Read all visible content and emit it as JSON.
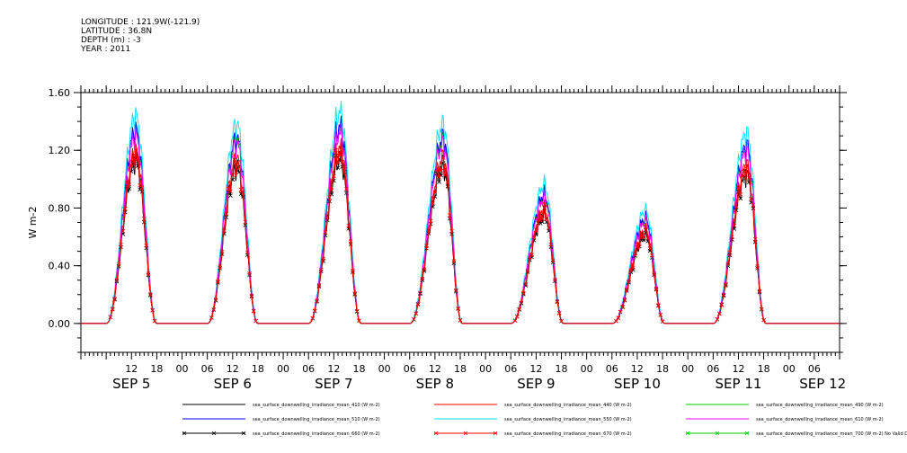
{
  "header": {
    "longitude_line": "LONGITUDE : 121.9W(-121.9)",
    "latitude_line": "LATITUDE : 36.8N",
    "depth_line": "DEPTH (m) : -3",
    "year_line": "YEAR : 2011"
  },
  "chart_data": {
    "type": "line",
    "ylabel": "W m-2",
    "ylim": [
      -0.2,
      1.6
    ],
    "yticks": [
      "1.60",
      "1.20",
      "0.80",
      "0.40",
      "0.00"
    ],
    "ytick_values": [
      1.6,
      1.2,
      0.8,
      0.4,
      0.0
    ],
    "xlim_hours": [
      0,
      180
    ],
    "xtick_labels": [
      {
        "h": 12,
        "label": "12"
      },
      {
        "h": 18,
        "label": "18"
      },
      {
        "h": 24,
        "label": "00"
      },
      {
        "h": 30,
        "label": "06"
      },
      {
        "h": 36,
        "label": "12"
      },
      {
        "h": 42,
        "label": "18"
      },
      {
        "h": 48,
        "label": "00"
      },
      {
        "h": 54,
        "label": "06"
      },
      {
        "h": 60,
        "label": "12"
      },
      {
        "h": 66,
        "label": "18"
      },
      {
        "h": 72,
        "label": "00"
      },
      {
        "h": 78,
        "label": "06"
      },
      {
        "h": 84,
        "label": "12"
      },
      {
        "h": 90,
        "label": "18"
      },
      {
        "h": 96,
        "label": "00"
      },
      {
        "h": 102,
        "label": "06"
      },
      {
        "h": 108,
        "label": "12"
      },
      {
        "h": 114,
        "label": "18"
      },
      {
        "h": 120,
        "label": "00"
      },
      {
        "h": 126,
        "label": "06"
      },
      {
        "h": 132,
        "label": "12"
      },
      {
        "h": 138,
        "label": "18"
      },
      {
        "h": 144,
        "label": "00"
      },
      {
        "h": 150,
        "label": "06"
      },
      {
        "h": 156,
        "label": "12"
      },
      {
        "h": 162,
        "label": "18"
      },
      {
        "h": 168,
        "label": "00"
      },
      {
        "h": 174,
        "label": "06"
      }
    ],
    "date_labels": [
      {
        "h": 12,
        "label": "SEP   5"
      },
      {
        "h": 36,
        "label": "SEP   6"
      },
      {
        "h": 60,
        "label": "SEP   7"
      },
      {
        "h": 84,
        "label": "SEP   8"
      },
      {
        "h": 108,
        "label": "SEP   9"
      },
      {
        "h": 132,
        "label": "SEP   10"
      },
      {
        "h": 156,
        "label": "SEP   11"
      },
      {
        "h": 176,
        "label": "SEP   12"
      }
    ],
    "days": [
      {
        "start": 6,
        "peak_h": 13,
        "end": 18,
        "peak": 1.2
      },
      {
        "start": 30,
        "peak_h": 37,
        "end": 42,
        "peak": 1.15
      },
      {
        "start": 54,
        "peak_h": 61.5,
        "end": 66.5,
        "peak": 1.22
      },
      {
        "start": 78,
        "peak_h": 86,
        "end": 90.5,
        "peak": 1.15
      },
      {
        "start": 102,
        "peak_h": 110,
        "end": 114.5,
        "peak": 0.8
      },
      {
        "start": 126,
        "peak_h": 134,
        "end": 138.5,
        "peak": 0.65
      },
      {
        "start": 150,
        "peak_h": 158,
        "end": 162.5,
        "peak": 1.1
      }
    ],
    "series": [
      {
        "name": "sea_surface_downwelling_irradiance_mean_410 (W m-2)",
        "color": "#000000",
        "factor": 0.97,
        "marker": false
      },
      {
        "name": "sea_surface_downwelling_irradiance_mean_440 (W m-2)",
        "color": "#ff0000",
        "factor": 1.0,
        "marker": false
      },
      {
        "name": "sea_surface_downwelling_irradiance_mean_490 (W m-2)",
        "color": "#00cc00",
        "factor": 1.1,
        "marker": false
      },
      {
        "name": "sea_surface_downwelling_irradiance_mean_510 (W m-2)",
        "color": "#0000ff",
        "factor": 1.12,
        "marker": false
      },
      {
        "name": "sea_surface_downwelling_irradiance_mean_550 (W m-2)",
        "color": "#00e5ff",
        "factor": 1.2,
        "marker": false
      },
      {
        "name": "sea_surface_downwelling_irradiance_mean_610 (W m-2)",
        "color": "#ff00ff",
        "factor": 1.08,
        "marker": false
      },
      {
        "name": "sea_surface_downwelling_irradiance_mean_660 (W m-2)",
        "color": "#000000",
        "factor": 0.93,
        "marker": true
      },
      {
        "name": "sea_surface_downwelling_irradiance_mean_670 (W m-2)",
        "color": "#ff0000",
        "factor": 0.96,
        "marker": true
      },
      {
        "name": "sea_surface_downwelling_irradiance_mean_700 (W m-2) No Valid Data",
        "color": "#00cc00",
        "factor": 0.0,
        "marker": true
      }
    ]
  }
}
